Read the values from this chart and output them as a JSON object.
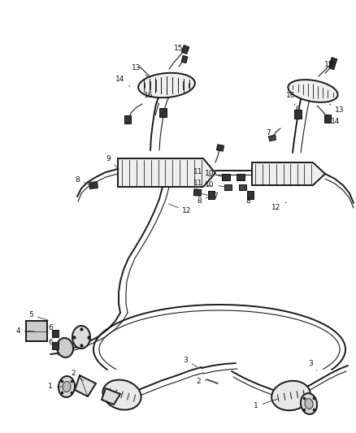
{
  "bg_color": "#ffffff",
  "line_color": "#1a1a1a",
  "fig_width": 4.38,
  "fig_height": 5.33,
  "dpi": 100,
  "lw_main": 1.4,
  "lw_thin": 0.8,
  "label_fontsize": 6.5
}
